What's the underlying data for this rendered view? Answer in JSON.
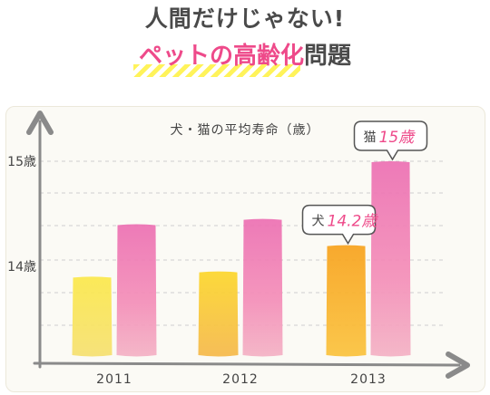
{
  "headline": {
    "line1": "人間だけじゃない!",
    "line2_highlight": "ペットの高齢化",
    "line2_rest": "問題"
  },
  "chart_data": {
    "type": "bar",
    "title": "犬・猫の平均寿命（歳）",
    "categories": [
      "2011",
      "2012",
      "2013"
    ],
    "series": [
      {
        "values": [
          13.9,
          13.95,
          14.2
        ]
      },
      {
        "values": [
          14.4,
          14.45,
          15.0
        ]
      }
    ],
    "ylim": [
      13.1,
      15.0
    ],
    "yticks": [
      {
        "value": 15,
        "label": "15歳"
      },
      {
        "value": 14,
        "label": "14歳"
      }
    ],
    "grid": true,
    "annotations": [
      {
        "text": "犬",
        "value": "14.2歳",
        "category": "2013",
        "series_index": 0
      },
      {
        "text": "猫",
        "value": "15歳",
        "category": "2013",
        "series_index": 1
      }
    ],
    "colors": {
      "series0": [
        "#fbe84a",
        "#fcd62a",
        "#f8a21c"
      ],
      "series1": [
        "#ec6fb2",
        "#f48eb8",
        "#f4b1c4"
      ],
      "axis": "#8a8a8a",
      "grid": "#cfcfcf",
      "annotation_text": "#ee4a8a"
    }
  }
}
